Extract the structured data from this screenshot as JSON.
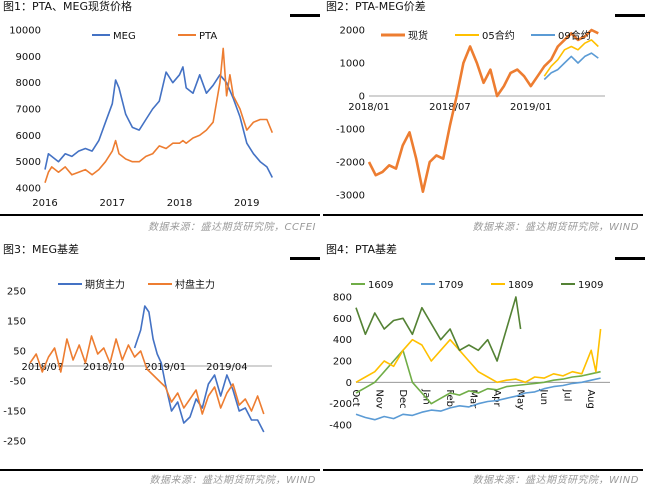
{
  "source_ccfei": "数据来源：盛达期货研究院，CCFEI",
  "source_wind": "数据来源：盛达期货研究院，WIND",
  "chart_data": [
    {
      "type": "line",
      "title": "图1：PTA、MEG现货价格",
      "ylim": [
        4000,
        10000
      ],
      "yticks": [
        4000,
        5000,
        6000,
        7000,
        8000,
        9000,
        10000
      ],
      "xticks": [
        "2016",
        "2017",
        "2018",
        "2019"
      ],
      "xtick_pos": [
        2016.0,
        2017.0,
        2018.0,
        2019.0
      ],
      "xlim": [
        2016.0,
        2019.42
      ],
      "legend": "top-center",
      "series": [
        {
          "name": "MEG",
          "color": "#4472C4",
          "x": [
            2016.0,
            2016.05,
            2016.1,
            2016.2,
            2016.3,
            2016.4,
            2016.5,
            2016.6,
            2016.7,
            2016.8,
            2016.9,
            2017.0,
            2017.05,
            2017.1,
            2017.2,
            2017.3,
            2017.4,
            2017.5,
            2017.6,
            2017.7,
            2017.8,
            2017.9,
            2018.0,
            2018.05,
            2018.1,
            2018.2,
            2018.3,
            2018.4,
            2018.5,
            2018.6,
            2018.7,
            2018.8,
            2018.9,
            2019.0,
            2019.1,
            2019.2,
            2019.3,
            2019.38
          ],
          "y": [
            4700,
            5300,
            5200,
            5000,
            5300,
            5200,
            5400,
            5500,
            5400,
            5800,
            6500,
            7200,
            8100,
            7800,
            6800,
            6300,
            6200,
            6600,
            7000,
            7300,
            8400,
            8000,
            8300,
            8600,
            7800,
            7600,
            8300,
            7600,
            7900,
            8300,
            8000,
            7400,
            6700,
            5700,
            5300,
            5000,
            4800,
            4400
          ]
        },
        {
          "name": "PTA",
          "color": "#ED7D31",
          "x": [
            2016.0,
            2016.05,
            2016.1,
            2016.2,
            2016.3,
            2016.4,
            2016.5,
            2016.6,
            2016.7,
            2016.8,
            2016.9,
            2017.0,
            2017.05,
            2017.1,
            2017.2,
            2017.3,
            2017.4,
            2017.5,
            2017.6,
            2017.7,
            2017.8,
            2017.9,
            2018.0,
            2018.05,
            2018.1,
            2018.2,
            2018.3,
            2018.4,
            2018.5,
            2018.6,
            2018.65,
            2018.7,
            2018.75,
            2018.8,
            2018.9,
            2019.0,
            2019.1,
            2019.2,
            2019.3,
            2019.38
          ],
          "y": [
            4200,
            4600,
            4800,
            4600,
            4800,
            4500,
            4600,
            4700,
            4500,
            4700,
            5000,
            5400,
            5800,
            5300,
            5100,
            5000,
            5000,
            5200,
            5300,
            5600,
            5500,
            5700,
            5700,
            5800,
            5700,
            5900,
            6000,
            6200,
            6500,
            8000,
            9300,
            7500,
            8300,
            7500,
            7000,
            6200,
            6500,
            6600,
            6600,
            6100
          ]
        }
      ]
    },
    {
      "type": "line",
      "title": "图2：PTA-MEG价差",
      "ylim": [
        -3000,
        2000
      ],
      "yticks": [
        -3000,
        -2000,
        -1000,
        0,
        1000,
        2000
      ],
      "xticks": [
        "2018/01",
        "2018/07",
        "2019/01"
      ],
      "xtick_pos": [
        0,
        6,
        12
      ],
      "xlim": [
        0,
        17.5
      ],
      "legend": "top",
      "series": [
        {
          "name": "现货",
          "color": "#ED7D31",
          "x": [
            0,
            0.5,
            1,
            1.5,
            2,
            2.5,
            3,
            3.5,
            4,
            4.5,
            5,
            5.5,
            6,
            6.5,
            7,
            7.5,
            8,
            8.5,
            9,
            9.5,
            10,
            10.5,
            11,
            11.5,
            12,
            12.5,
            13,
            13.5,
            14,
            14.5,
            15,
            15.5,
            16,
            16.5,
            17
          ],
          "y": [
            -2000,
            -2400,
            -2300,
            -2100,
            -2200,
            -1500,
            -1100,
            -1900,
            -2900,
            -2000,
            -1800,
            -1900,
            -900,
            0,
            1000,
            1500,
            1000,
            400,
            800,
            0,
            300,
            700,
            800,
            600,
            300,
            600,
            900,
            1100,
            1500,
            1700,
            1900,
            1700,
            1800,
            2000,
            1900
          ]
        },
        {
          "name": "05合约",
          "color": "#FFC000",
          "x": [
            13,
            13.5,
            14,
            14.5,
            15,
            15.5,
            16,
            16.5,
            17
          ],
          "y": [
            600,
            900,
            1100,
            1400,
            1500,
            1400,
            1600,
            1700,
            1500
          ]
        },
        {
          "name": "09合约",
          "color": "#5B9BD5",
          "x": [
            13,
            13.5,
            14,
            14.5,
            15,
            15.5,
            16,
            16.5,
            17
          ],
          "y": [
            500,
            700,
            800,
            1000,
            1200,
            1000,
            1200,
            1300,
            1150
          ]
        }
      ]
    },
    {
      "type": "line",
      "title": "图3：MEG基差",
      "ylim": [
        -250,
        250
      ],
      "yticks": [
        -250,
        -150,
        -50,
        50,
        150,
        250
      ],
      "xticks": [
        "2018/07",
        "2018/10",
        "2019/01",
        "2019/04"
      ],
      "xtick_pos": [
        0,
        3,
        6,
        9
      ],
      "xlim": [
        -0.6,
        11.2
      ],
      "legend": "top-center",
      "series": [
        {
          "name": "期货主力",
          "color": "#4472C4",
          "x": [
            4.5,
            4.8,
            5.0,
            5.2,
            5.4,
            5.6,
            5.8,
            6.0,
            6.3,
            6.6,
            6.9,
            7.2,
            7.5,
            7.8,
            8.1,
            8.4,
            8.7,
            9.0,
            9.3,
            9.6,
            9.9,
            10.2,
            10.5,
            10.8
          ],
          "y": [
            60,
            120,
            200,
            180,
            90,
            40,
            10,
            -60,
            -150,
            -120,
            -190,
            -170,
            -110,
            -140,
            -60,
            -30,
            -100,
            -30,
            -80,
            -150,
            -140,
            -180,
            -180,
            -220
          ]
        },
        {
          "name": "村盘主力",
          "color": "#ED7D31",
          "x": [
            -0.6,
            -0.3,
            0.0,
            0.3,
            0.6,
            0.9,
            1.2,
            1.5,
            1.8,
            2.1,
            2.4,
            2.7,
            3.0,
            3.3,
            3.6,
            3.9,
            4.2,
            4.5,
            4.8,
            5.1,
            5.4,
            5.7,
            6.0,
            6.3,
            6.6,
            6.9,
            7.2,
            7.5,
            7.8,
            8.1,
            8.4,
            8.7,
            9.0,
            9.3,
            9.6,
            9.9,
            10.2,
            10.5,
            10.8
          ],
          "y": [
            10,
            40,
            -20,
            30,
            60,
            -20,
            90,
            20,
            70,
            10,
            100,
            40,
            60,
            10,
            90,
            20,
            70,
            30,
            50,
            -10,
            -30,
            -50,
            -70,
            -120,
            -90,
            -140,
            -110,
            -80,
            -160,
            -100,
            -70,
            -140,
            -90,
            -60,
            -130,
            -110,
            -150,
            -100,
            -160
          ]
        }
      ]
    },
    {
      "type": "line",
      "title": "图4：PTA基差",
      "ylim": [
        -400,
        800
      ],
      "yticks": [
        -400,
        -200,
        0,
        200,
        400,
        600,
        800
      ],
      "xticks": [
        "Oct",
        "Nov",
        "Dec",
        "Jan",
        "Feb",
        "Mar",
        "Apr",
        "May",
        "Jun",
        "Jul",
        "Aug"
      ],
      "xtick_pos": [
        0,
        1,
        2,
        3,
        4,
        5,
        6,
        7,
        8,
        9,
        10
      ],
      "xlim": [
        0,
        10.8
      ],
      "legend": "top",
      "series": [
        {
          "name": "1609",
          "color": "#70AD47",
          "x": [
            0,
            0.4,
            0.8,
            1.2,
            1.6,
            2.0,
            2.4,
            2.8,
            3.2,
            3.6,
            4.0,
            4.4,
            4.8,
            5.2,
            5.6,
            6.0,
            6.4,
            6.8,
            7.2,
            7.6,
            8.0,
            8.4,
            8.8,
            9.2,
            9.6,
            10.0,
            10.4
          ],
          "y": [
            -100,
            -50,
            0,
            100,
            200,
            300,
            0,
            -100,
            -200,
            -150,
            -100,
            -120,
            -80,
            -100,
            -60,
            -70,
            -40,
            -30,
            -20,
            -10,
            0,
            20,
            30,
            50,
            60,
            80,
            100
          ]
        },
        {
          "name": "1709",
          "color": "#5B9BD5",
          "x": [
            0,
            0.4,
            0.8,
            1.2,
            1.6,
            2.0,
            2.4,
            2.8,
            3.2,
            3.6,
            4.0,
            4.4,
            4.8,
            5.2,
            5.6,
            6.0,
            6.4,
            6.8,
            7.2,
            7.6,
            8.0,
            8.4,
            8.8,
            9.2,
            9.6,
            10.0,
            10.4
          ],
          "y": [
            -300,
            -330,
            -350,
            -320,
            -340,
            -300,
            -310,
            -280,
            -260,
            -270,
            -240,
            -220,
            -230,
            -200,
            -180,
            -170,
            -150,
            -130,
            -100,
            -90,
            -60,
            -40,
            -30,
            -10,
            0,
            20,
            40
          ]
        },
        {
          "name": "1809",
          "color": "#FFC000",
          "x": [
            0,
            0.4,
            0.8,
            1.2,
            1.6,
            2.0,
            2.4,
            2.8,
            3.2,
            3.6,
            4.0,
            4.4,
            4.8,
            5.2,
            5.6,
            6.0,
            6.4,
            6.8,
            7.2,
            7.6,
            8.0,
            8.4,
            8.8,
            9.2,
            9.6,
            10.0,
            10.2,
            10.4
          ],
          "y": [
            0,
            50,
            100,
            200,
            150,
            300,
            400,
            350,
            200,
            300,
            400,
            300,
            200,
            100,
            50,
            0,
            20,
            30,
            0,
            50,
            40,
            80,
            60,
            100,
            80,
            300,
            100,
            500
          ]
        },
        {
          "name": "1909",
          "color": "#548235",
          "x": [
            0,
            0.4,
            0.8,
            1.2,
            1.6,
            2.0,
            2.4,
            2.8,
            3.2,
            3.6,
            4.0,
            4.4,
            4.8,
            5.2,
            5.6,
            6.0,
            6.4,
            6.8,
            7.0
          ],
          "y": [
            700,
            450,
            650,
            500,
            580,
            600,
            450,
            700,
            550,
            400,
            500,
            300,
            350,
            300,
            400,
            200,
            500,
            800,
            500
          ]
        }
      ]
    }
  ]
}
